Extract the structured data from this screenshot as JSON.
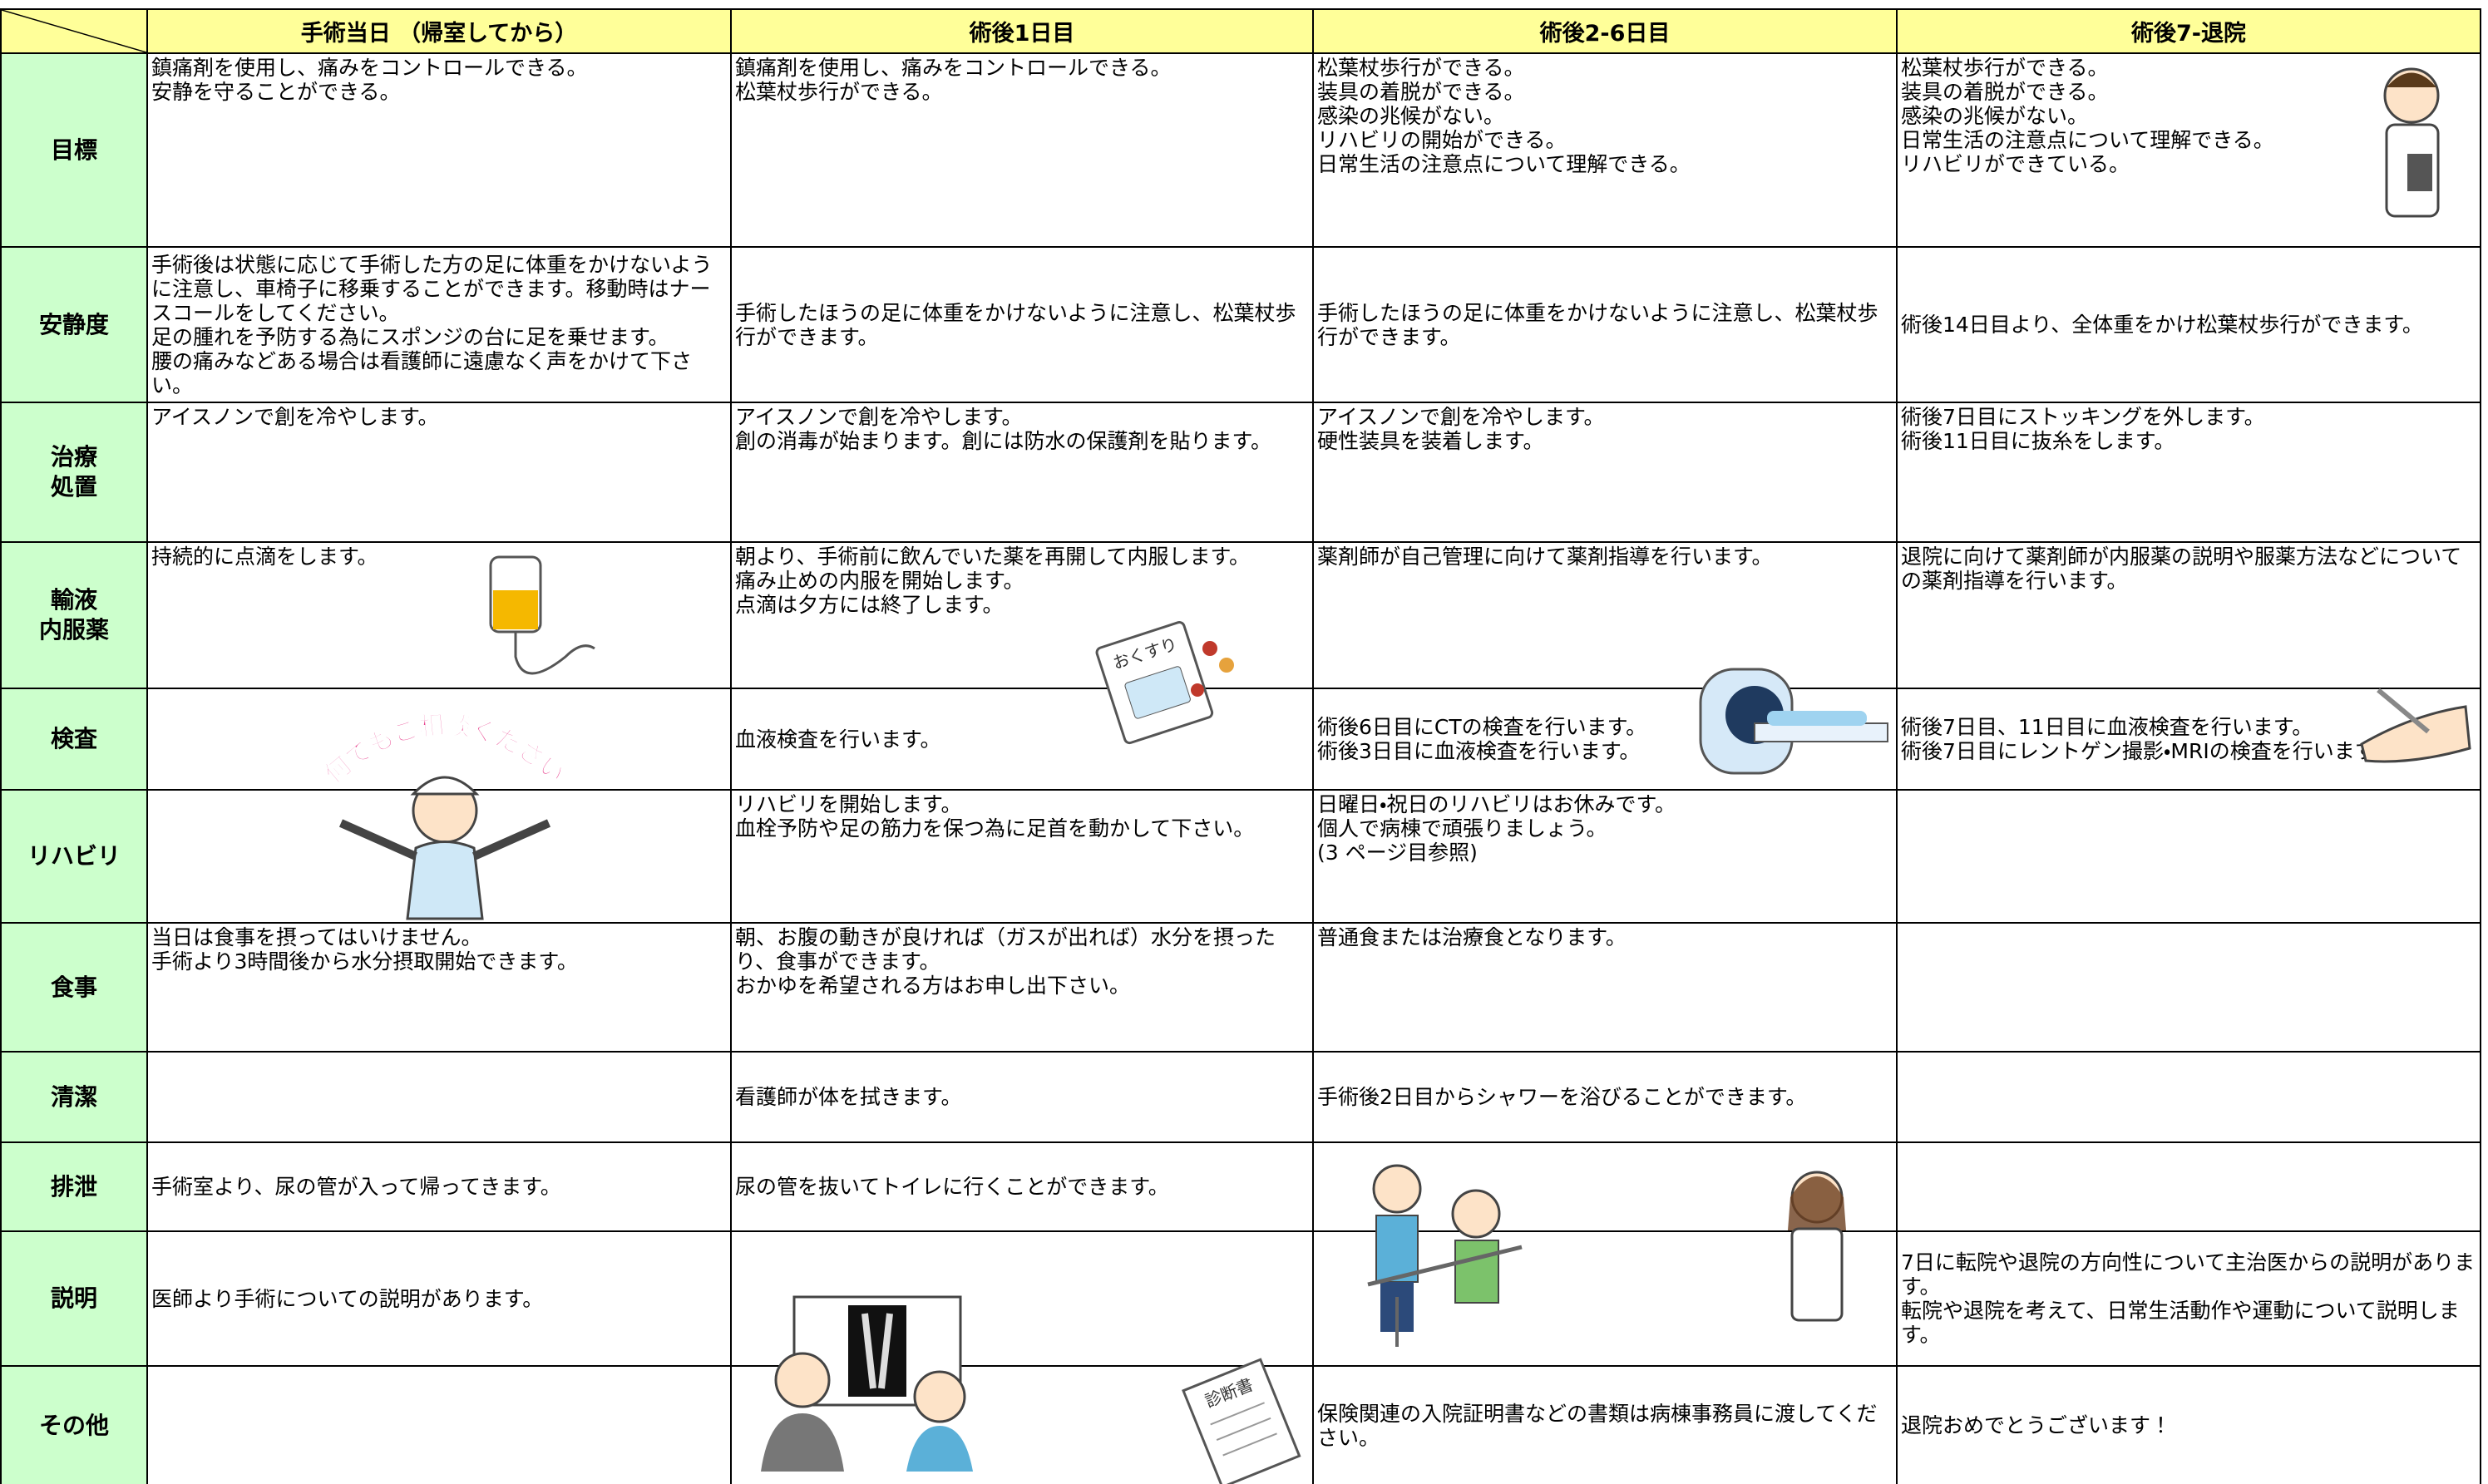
{
  "table": {
    "headers": [
      "手術当日 （帰室してから）",
      "術後1日目",
      "術後2-6日目",
      "術後7-退院"
    ],
    "rows": [
      {
        "label": [
          "目標"
        ],
        "cells": [
          [
            "鎮痛剤を使用し、痛みをコントロールできる。",
            "安静を守ることができる。"
          ],
          [
            "鎮痛剤を使用し、痛みをコントロールできる。",
            "松葉杖歩行ができる。"
          ],
          [
            "松葉杖歩行ができる。",
            "装具の着脱ができる。",
            "感染の兆候がない。",
            "リハビリの開始ができる。",
            "日常生活の注意点について理解できる。"
          ],
          [
            "松葉杖歩行ができる。",
            "装具の着脱ができる。",
            "感染の兆候がない。",
            "日常生活の注意点について理解できる。",
            "リハビリができている。"
          ]
        ]
      },
      {
        "label": [
          "安静度"
        ],
        "cells": [
          [
            "手術後は状態に応じて手術した方の足に体重をかけないように注意し、車椅子に移乗することができます。移動時はナースコールをしてください。",
            "足の腫れを予防する為にスポンジの台に足を乗せます。",
            "腰の痛みなどある場合は看護師に遠慮なく声をかけて下さい。"
          ],
          [
            "手術したほうの足に体重をかけないように注意し、松葉杖歩行ができます。"
          ],
          [
            "手術したほうの足に体重をかけないように注意し、松葉杖歩行ができます。"
          ],
          [
            "術後14日目より、全体重をかけ松葉杖歩行ができます。"
          ]
        ]
      },
      {
        "label": [
          "治療",
          "処置"
        ],
        "cells": [
          [
            "アイスノンで創を冷やします。"
          ],
          [
            "アイスノンで創を冷やします。",
            "創の消毒が始まります。創には防水の保護剤を貼ります。"
          ],
          [
            "アイスノンで創を冷やします。",
            "硬性装具を装着します。"
          ],
          [
            "術後7日目にストッキングを外します。",
            "術後11日目に抜糸をします。"
          ]
        ]
      },
      {
        "label": [
          "輸液",
          "内服薬"
        ],
        "cells": [
          [
            "持続的に点滴をします。"
          ],
          [
            "朝より、手術前に飲んでいた薬を再開して内服します。",
            "痛み止めの内服を開始します。",
            "点滴は夕方には終了します。"
          ],
          [
            "薬剤師が自己管理に向けて薬剤指導を行います。"
          ],
          [
            "退院に向けて薬剤師が内服薬の説明や服薬方法などについての薬剤指導を行います。"
          ]
        ]
      },
      {
        "label": [
          "検査"
        ],
        "cells": [
          null,
          [
            "血液検査を行います。"
          ],
          [
            "術後6日目にCTの検査を行います。",
            "術後3日目に血液検査を行います。"
          ],
          [
            "術後7日目、11日目に血液検査を行います。",
            "術後7日目にレントゲン撮影・MRIの検査を行います。"
          ]
        ]
      },
      {
        "label": [
          "リハビリ"
        ],
        "cells": [
          null,
          [
            "リハビリを開始します。",
            "血栓予防や足の筋力を保つ為に足首を動かして下さい。"
          ],
          [
            "日曜日・祝日のリハビリはお休みです。",
            "個人で病棟で頑張りましょう。",
            "(3 ページ目参照)"
          ],
          null
        ]
      },
      {
        "label": [
          "食事"
        ],
        "cells": [
          [
            "当日は食事を摂ってはいけません。",
            "手術より3時間後から水分摂取開始できます。"
          ],
          [
            "朝、お腹の動きが良ければ（ガスが出れば）水分を摂ったり、食事ができます。",
            "おかゆを希望される方はお申し出下さい。"
          ],
          [
            "普通食または治療食となります。"
          ],
          null
        ]
      },
      {
        "label": [
          "清潔"
        ],
        "cells": [
          null,
          [
            "看護師が体を拭きます。"
          ],
          [
            "手術後2日目からシャワーを浴びることができます。"
          ],
          null
        ]
      },
      {
        "label": [
          "排泄"
        ],
        "cells": [
          [
            "手術室より、尿の管が入って帰ってきます。"
          ],
          [
            "尿の管を抜いてトイレに行くことができます。"
          ],
          null,
          null
        ]
      },
      {
        "label": [
          "説明"
        ],
        "cells": [
          [
            "医師より手術についての説明があります。"
          ],
          null,
          null,
          [
            "7日に転院や退院の方向性について主治医からの説明があります。",
            "転院や退院を考えて、日常生活動作や運動について説明します。"
          ]
        ]
      },
      {
        "label": [
          "その他"
        ],
        "cells": [
          null,
          null,
          [
            "保険関連の入院証明書などの書類は病棟事務員に渡してください。"
          ],
          [
            "退院おめでとうございます！"
          ]
        ]
      }
    ]
  },
  "illustrations": {
    "nurse_banner": "何でもご相談ください",
    "medicine_bag": "おくすり",
    "certificate": "診断書"
  }
}
